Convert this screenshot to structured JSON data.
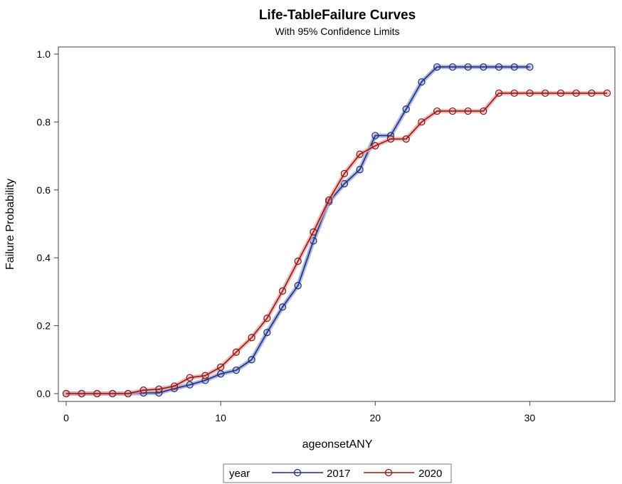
{
  "chart_data": {
    "type": "line",
    "title": "Life-TableFailure Curves",
    "subtitle": "With 95% Confidence Limits",
    "xlabel": "ageonsetANY",
    "ylabel": "Failure Probability",
    "xlim": [
      0,
      35
    ],
    "ylim": [
      0,
      1
    ],
    "xticks": [
      0,
      10,
      20,
      30
    ],
    "yticks": [
      0.0,
      0.2,
      0.4,
      0.6,
      0.8,
      1.0
    ],
    "xtick_labels": [
      "0",
      "10",
      "20",
      "30"
    ],
    "ytick_labels": [
      "0.0",
      "0.2",
      "0.4",
      "0.6",
      "0.8",
      "1.0"
    ],
    "grid": false,
    "legend": {
      "title": "year",
      "position": "bottom-center"
    },
    "series": [
      {
        "name": "2017",
        "color": "#1f2f7a",
        "band_color": "#8f9fd0",
        "x": [
          0,
          1,
          2,
          3,
          4,
          5,
          6,
          7,
          8,
          9,
          10,
          11,
          12,
          13,
          14,
          15,
          16,
          17,
          18,
          19,
          20,
          21,
          22,
          23,
          24,
          25,
          26,
          27,
          28,
          29,
          30
        ],
        "values": [
          0,
          0,
          0,
          0,
          0,
          0.002,
          0.002,
          0.015,
          0.026,
          0.039,
          0.058,
          0.069,
          0.1,
          0.18,
          0.255,
          0.318,
          0.45,
          0.565,
          0.618,
          0.66,
          0.76,
          0.76,
          0.838,
          0.918,
          0.962,
          0.962,
          0.962,
          0.962,
          0.962,
          0.962,
          0.962
        ]
      },
      {
        "name": "2020",
        "color": "#8b1a1a",
        "band_color": "#e8a0a0",
        "x": [
          0,
          1,
          2,
          3,
          4,
          5,
          6,
          7,
          8,
          9,
          10,
          11,
          12,
          13,
          14,
          15,
          16,
          17,
          18,
          19,
          20,
          21,
          22,
          23,
          24,
          25,
          26,
          27,
          28,
          29,
          30,
          31,
          32,
          33,
          34,
          35
        ],
        "values": [
          0,
          0,
          0,
          0,
          0,
          0.01,
          0.013,
          0.022,
          0.047,
          0.053,
          0.078,
          0.122,
          0.165,
          0.222,
          0.302,
          0.39,
          0.476,
          0.57,
          0.648,
          0.705,
          0.73,
          0.75,
          0.75,
          0.8,
          0.832,
          0.832,
          0.832,
          0.832,
          0.885,
          0.885,
          0.885,
          0.885,
          0.885,
          0.885,
          0.885,
          0.885
        ]
      }
    ]
  }
}
